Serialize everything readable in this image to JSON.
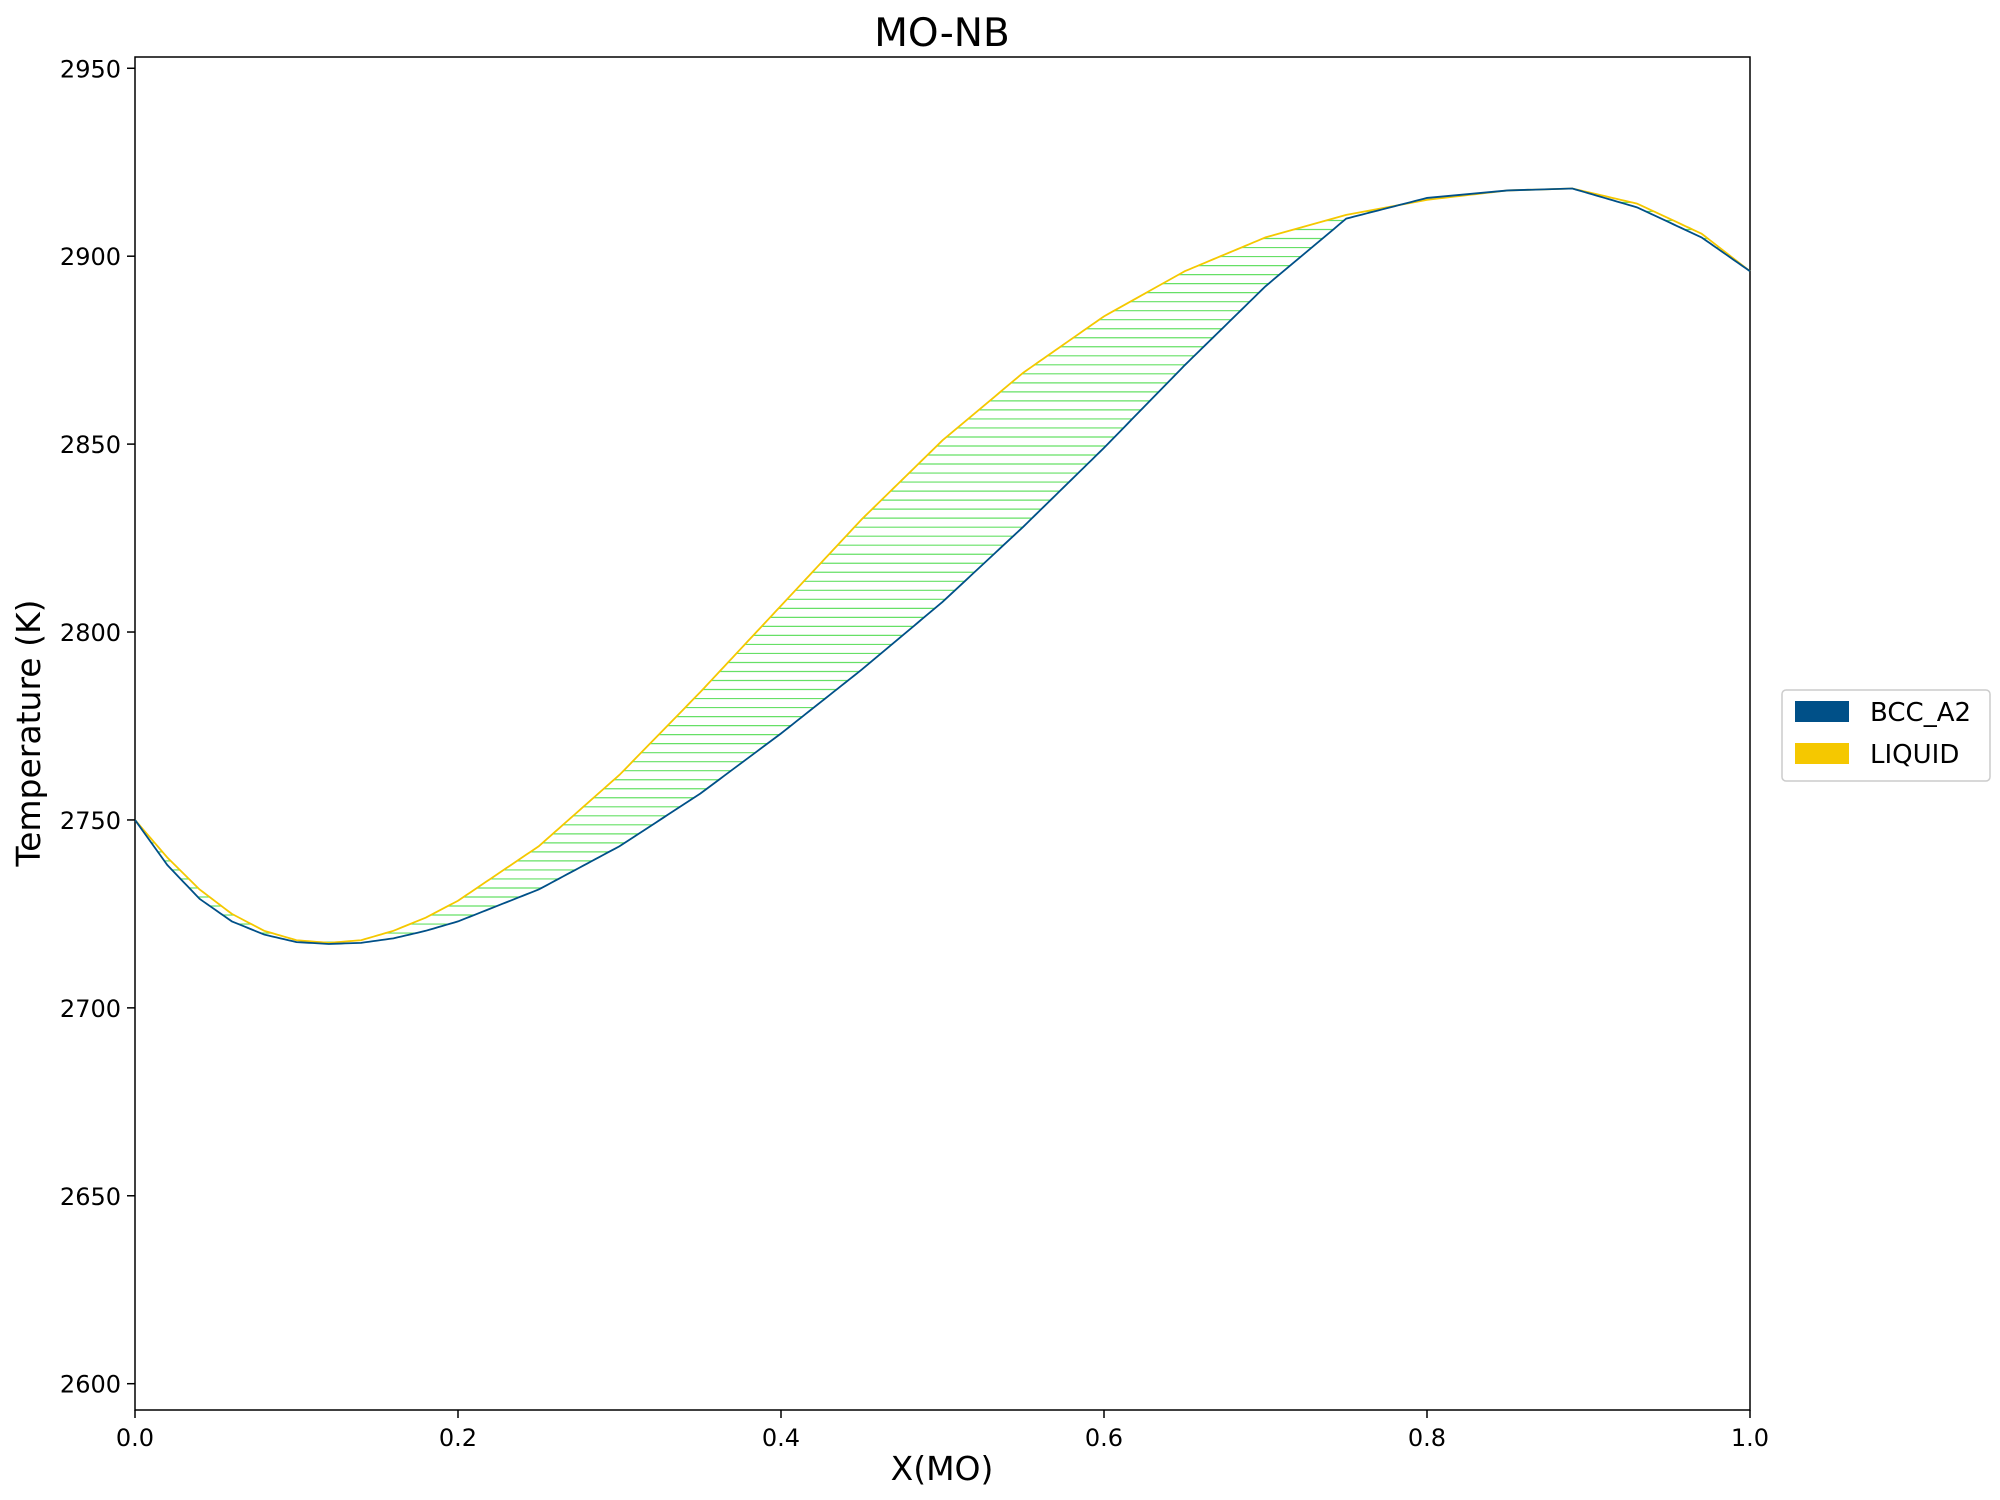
{
  "chart_data": {
    "type": "line",
    "title": "MO-NB",
    "xlabel": "X(MO)",
    "ylabel": "Temperature (K)",
    "xlim": [
      0.0,
      1.0
    ],
    "ylim": [
      2593,
      2953
    ],
    "xticks": [
      "0.0",
      "0.2",
      "0.4",
      "0.6",
      "0.8",
      "1.0"
    ],
    "yticks": [
      "2600",
      "2650",
      "2700",
      "2750",
      "2800",
      "2850",
      "2900",
      "2950"
    ],
    "grid": false,
    "legend_position": "outside right",
    "series": [
      {
        "name": "BCC_A2",
        "color": "#005088",
        "x": [
          0.0,
          0.02,
          0.04,
          0.06,
          0.08,
          0.1,
          0.12,
          0.14,
          0.16,
          0.18,
          0.2,
          0.25,
          0.3,
          0.35,
          0.4,
          0.45,
          0.5,
          0.55,
          0.6,
          0.65,
          0.7,
          0.75,
          0.8,
          0.85,
          0.89,
          0.93,
          0.97,
          1.0
        ],
        "y": [
          2750,
          2738,
          2729,
          2723,
          2719.5,
          2717.5,
          2717,
          2717.3,
          2718.5,
          2720.5,
          2723,
          2731.5,
          2743,
          2757,
          2773,
          2790,
          2808,
          2828,
          2849,
          2871,
          2892,
          2910,
          2915.5,
          2917.5,
          2918,
          2913,
          2905,
          2896
        ]
      },
      {
        "name": "LIQUID",
        "color": "#f5c800",
        "x": [
          0.0,
          0.02,
          0.04,
          0.06,
          0.08,
          0.1,
          0.12,
          0.14,
          0.16,
          0.18,
          0.2,
          0.25,
          0.3,
          0.35,
          0.4,
          0.45,
          0.5,
          0.55,
          0.6,
          0.65,
          0.7,
          0.75,
          0.8,
          0.85,
          0.89,
          0.93,
          0.97,
          1.0
        ],
        "y": [
          2750,
          2740,
          2731.5,
          2725,
          2720.5,
          2718,
          2717.3,
          2718,
          2720.5,
          2724,
          2728.5,
          2743,
          2762,
          2784,
          2807,
          2830,
          2851,
          2869,
          2884,
          2896,
          2905,
          2911,
          2915,
          2917.5,
          2918,
          2914,
          2906,
          2896
        ]
      }
    ],
    "annotations": [
      "green tie-lines span the two-phase region between BCC_A2 and LIQUID"
    ]
  }
}
